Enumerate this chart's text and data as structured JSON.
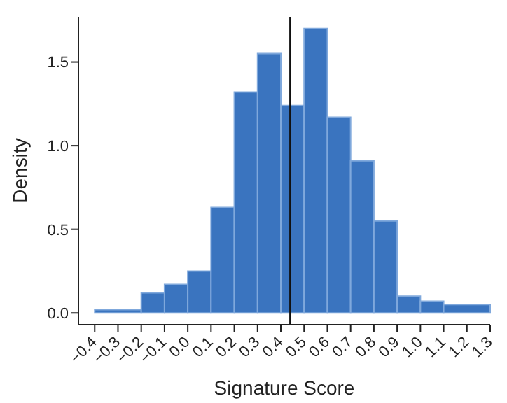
{
  "chart_data": {
    "type": "histogram",
    "xlabel": "Signature Score",
    "ylabel": "Density",
    "bins": [
      -0.4,
      -0.2,
      -0.1,
      0,
      0.1,
      0.2,
      0.3,
      0.4,
      0.5,
      0.6,
      0.7,
      0.8,
      0.9,
      1.0,
      1.1,
      1.3
    ],
    "values": [
      0.02,
      0.12,
      0.17,
      0.25,
      0.63,
      1.32,
      1.55,
      1.24,
      1.7,
      1.17,
      0.91,
      0.55,
      0.1,
      0.07,
      0.05
    ],
    "color": "#3a74bf",
    "xlim": [
      -0.47,
      1.3
    ],
    "xticks": [
      {
        "value": -0.4,
        "label": "−0.4"
      },
      {
        "value": -0.3,
        "label": "−0.3"
      },
      {
        "value": -0.2,
        "label": "−0.2"
      },
      {
        "value": -0.1,
        "label": "−0.1"
      },
      {
        "value": 0,
        "label": "0.0"
      },
      0.1,
      0.2,
      0.3,
      0.4,
      0.5,
      0.6,
      0.7,
      0.8,
      0.9,
      {
        "value": 1,
        "label": "1.0"
      },
      1.1,
      1.2,
      1.3
    ],
    "ylim": [
      -0.07,
      1.77
    ],
    "yticks": [
      {
        "value": 0,
        "label": "0.0"
      },
      0.5,
      {
        "value": 1,
        "label": "1.0"
      },
      1.5
    ],
    "ref_lines": [
      {
        "axis": "x",
        "value": 0.44,
        "color": "#111111"
      }
    ],
    "grid": false
  }
}
